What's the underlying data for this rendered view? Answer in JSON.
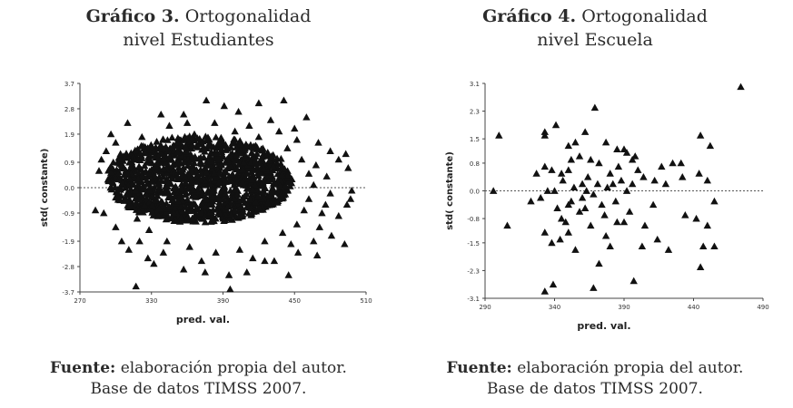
{
  "charts": [
    {
      "title_label": "Gráfico 3.",
      "title_rest": "Ortogonalidad",
      "title_line2": "nivel Estudiantes",
      "source_label": "Fuente:",
      "source_rest": "elaboración propia del autor.",
      "source_line2": "Base de datos TIMSS 2007."
    },
    {
      "title_label": "Gráfico 4.",
      "title_rest": "Ortogonalidad",
      "title_line2": "nivel Escuela",
      "source_label": "Fuente:",
      "source_rest": "elaboración propia del autor.",
      "source_line2": "Base de datos TIMSS 2007."
    }
  ],
  "chart_data": [
    {
      "type": "scatter",
      "title": "Gráfico 3. Ortogonalidad nivel Estudiantes",
      "xlabel": "pred. val.",
      "ylabel": "std( constante)",
      "xlim": [
        270,
        510
      ],
      "ylim": [
        -3.7,
        3.7
      ],
      "x_ticks": [
        "270",
        "330",
        "390",
        "450",
        "510"
      ],
      "y_ticks": [
        "3.7",
        "2.8",
        "1.9",
        "0.9",
        "0.0",
        "-0.9",
        "-1.9",
        "-2.8",
        "-3.7"
      ],
      "reference_line_y": 0,
      "marker": "triangle",
      "points": [
        [
          376,
          3.1
        ],
        [
          391,
          2.9
        ],
        [
          420,
          3.0
        ],
        [
          441,
          3.1
        ],
        [
          357,
          2.6
        ],
        [
          338,
          2.6
        ],
        [
          403,
          2.7
        ],
        [
          310,
          2.3
        ],
        [
          296,
          1.9
        ],
        [
          345,
          2.2
        ],
        [
          460,
          2.5
        ],
        [
          470,
          1.6
        ],
        [
          480,
          1.3
        ],
        [
          487,
          1.0
        ],
        [
          493,
          1.2
        ],
        [
          495,
          0.7
        ],
        [
          498,
          -0.1
        ],
        [
          497,
          -0.4
        ],
        [
          494,
          -0.6
        ],
        [
          487,
          -1.0
        ],
        [
          481,
          -1.7
        ],
        [
          492,
          -2.0
        ],
        [
          469,
          -2.4
        ],
        [
          466,
          -1.9
        ],
        [
          453,
          -2.3
        ],
        [
          433,
          -2.6
        ],
        [
          425,
          -2.6
        ],
        [
          410,
          -3.0
        ],
        [
          445,
          -3.1
        ],
        [
          395,
          -3.1
        ],
        [
          375,
          -3.0
        ],
        [
          357,
          -2.9
        ],
        [
          332,
          -2.7
        ],
        [
          327,
          -2.5
        ],
        [
          311,
          -2.2
        ],
        [
          305,
          -1.9
        ],
        [
          300,
          -1.4
        ],
        [
          290,
          -0.9
        ],
        [
          283,
          -0.8
        ],
        [
          286,
          0.6
        ],
        [
          288,
          1.0
        ],
        [
          292,
          1.3
        ],
        [
          300,
          1.6
        ],
        [
          317,
          -3.5
        ],
        [
          396,
          -3.6
        ],
        [
          352,
          1.6
        ],
        [
          366,
          1.9
        ],
        [
          400,
          2.0
        ],
        [
          420,
          1.8
        ],
        [
          444,
          1.4
        ],
        [
          456,
          1.0
        ],
        [
          462,
          0.5
        ],
        [
          466,
          0.1
        ],
        [
          462,
          -0.4
        ],
        [
          458,
          -0.8
        ],
        [
          452,
          -1.3
        ],
        [
          440,
          -1.6
        ],
        [
          425,
          -1.9
        ],
        [
          404,
          -2.2
        ],
        [
          384,
          -2.3
        ],
        [
          362,
          -2.1
        ],
        [
          343,
          -1.9
        ],
        [
          328,
          -1.5
        ],
        [
          318,
          -1.1
        ],
        [
          312,
          -0.6
        ],
        [
          308,
          0.0
        ],
        [
          310,
          0.5
        ],
        [
          316,
          1.0
        ],
        [
          327,
          1.4
        ],
        [
          340,
          1.7
        ],
        [
          383,
          2.3
        ],
        [
          412,
          2.2
        ],
        [
          437,
          2.0
        ],
        [
          452,
          1.7
        ],
        [
          468,
          0.8
        ],
        [
          473,
          -0.9
        ],
        [
          471,
          -1.4
        ],
        [
          447,
          -2.0
        ],
        [
          415,
          -2.5
        ],
        [
          372,
          -2.6
        ],
        [
          340,
          -2.3
        ],
        [
          320,
          -1.9
        ],
        [
          302,
          -0.3
        ],
        [
          298,
          0.9
        ],
        [
          304,
          1.2
        ],
        [
          322,
          1.8
        ],
        [
          360,
          2.3
        ],
        [
          430,
          2.4
        ],
        [
          450,
          2.1
        ],
        [
          477,
          0.4
        ],
        [
          480,
          -0.2
        ],
        [
          476,
          -0.6
        ]
      ]
    },
    {
      "type": "scatter",
      "title": "Gráfico 4. Ortogonalidad nivel Escuela",
      "xlabel": "pred. val.",
      "ylabel": "std( constante)",
      "xlim": [
        290,
        490
      ],
      "ylim": [
        -3.1,
        3.1
      ],
      "x_ticks": [
        "290",
        "340",
        "390",
        "440",
        "490"
      ],
      "y_ticks": [
        "3.1",
        "2.3",
        "1.5",
        "0.8",
        "0.0",
        "-0.8",
        "-1.5",
        "-2.3",
        "-3.1"
      ],
      "reference_line_y": 0,
      "marker": "triangle",
      "points": [
        [
          474,
          3.0
        ],
        [
          369,
          2.4
        ],
        [
          341,
          1.9
        ],
        [
          333,
          1.7
        ],
        [
          333,
          1.6
        ],
        [
          350,
          1.3
        ],
        [
          355,
          1.4
        ],
        [
          362,
          1.7
        ],
        [
          377,
          1.4
        ],
        [
          385,
          1.2
        ],
        [
          390,
          1.2
        ],
        [
          392,
          1.1
        ],
        [
          396,
          0.9
        ],
        [
          400,
          0.6
        ],
        [
          404,
          0.4
        ],
        [
          412,
          0.3
        ],
        [
          417,
          0.7
        ],
        [
          425,
          0.8
        ],
        [
          431,
          0.8
        ],
        [
          432,
          0.4
        ],
        [
          444,
          0.5
        ],
        [
          445,
          1.6
        ],
        [
          452,
          1.3
        ],
        [
          450,
          0.3
        ],
        [
          455,
          -0.3
        ],
        [
          442,
          -0.8
        ],
        [
          434,
          -0.7
        ],
        [
          450,
          -1.0
        ],
        [
          447,
          -1.6
        ],
        [
          455,
          -1.6
        ],
        [
          445,
          -2.2
        ],
        [
          422,
          -1.7
        ],
        [
          414,
          -1.4
        ],
        [
          403,
          -1.6
        ],
        [
          405,
          -1.0
        ],
        [
          394,
          -0.6
        ],
        [
          390,
          -0.9
        ],
        [
          385,
          -0.9
        ],
        [
          377,
          -1.3
        ],
        [
          380,
          -1.6
        ],
        [
          372,
          -2.1
        ],
        [
          368,
          -2.8
        ],
        [
          355,
          -1.7
        ],
        [
          350,
          -1.2
        ],
        [
          344,
          -1.4
        ],
        [
          338,
          -1.5
        ],
        [
          333,
          -1.2
        ],
        [
          333,
          -2.9
        ],
        [
          339,
          -2.7
        ],
        [
          397,
          -2.6
        ],
        [
          306,
          -1.0
        ],
        [
          323,
          -0.3
        ],
        [
          327,
          0.5
        ],
        [
          333,
          0.7
        ],
        [
          338,
          0.6
        ],
        [
          345,
          0.5
        ],
        [
          346,
          0.3
        ],
        [
          350,
          0.6
        ],
        [
          354,
          0.1
        ],
        [
          360,
          0.2
        ],
        [
          364,
          0.4
        ],
        [
          366,
          0.9
        ],
        [
          372,
          0.8
        ],
        [
          380,
          0.5
        ],
        [
          382,
          0.2
        ],
        [
          388,
          0.3
        ],
        [
          392,
          0.0
        ],
        [
          396,
          0.2
        ],
        [
          340,
          0.0
        ],
        [
          352,
          -0.3
        ],
        [
          358,
          -0.6
        ],
        [
          362,
          -0.5
        ],
        [
          368,
          -0.1
        ],
        [
          374,
          -0.4
        ],
        [
          345,
          -0.8
        ],
        [
          350,
          -0.4
        ],
        [
          342,
          -0.5
        ],
        [
          335,
          0.0
        ],
        [
          300,
          1.6
        ],
        [
          296,
          0.0
        ],
        [
          330,
          -0.2
        ],
        [
          366,
          -1.0
        ],
        [
          363,
          0.0
        ],
        [
          371,
          0.2
        ],
        [
          376,
          -0.7
        ],
        [
          386,
          0.7
        ],
        [
          398,
          1.0
        ],
        [
          411,
          -0.4
        ],
        [
          420,
          0.2
        ],
        [
          358,
          1.0
        ],
        [
          352,
          0.9
        ],
        [
          360,
          -0.2
        ],
        [
          348,
          -0.9
        ],
        [
          378,
          0.1
        ],
        [
          384,
          -0.3
        ]
      ]
    }
  ]
}
